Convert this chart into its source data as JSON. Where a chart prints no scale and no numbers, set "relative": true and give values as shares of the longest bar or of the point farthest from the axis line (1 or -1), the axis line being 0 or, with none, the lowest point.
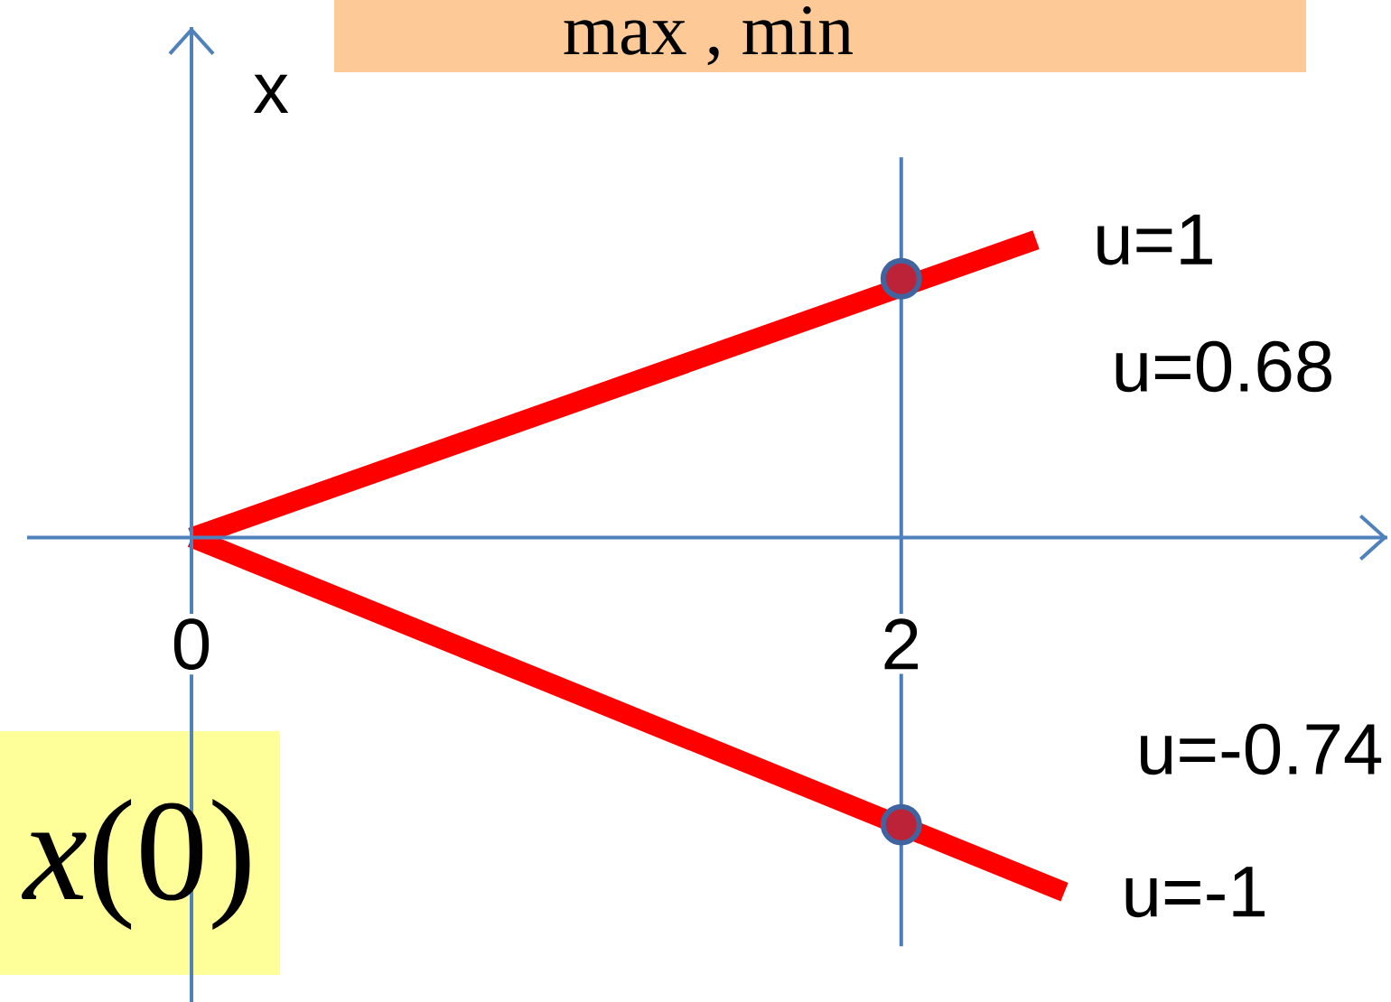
{
  "chart_data": {
    "type": "line",
    "relative": true,
    "ylabel": "x",
    "xlim": [
      0,
      3.37
    ],
    "xticks": [
      0,
      2
    ],
    "series": [
      {
        "name": "u=1",
        "color": "#ff0000",
        "x": [
          0,
          2.38
        ],
        "values": [
          0,
          0.84
        ]
      },
      {
        "name": "u=-1",
        "color": "#ff0000",
        "x": [
          0,
          2.46
        ],
        "values": [
          0,
          -1
        ]
      },
      {
        "type": "scatter",
        "marker": "circle",
        "color": "#3f64a0",
        "x": [
          2,
          2
        ],
        "values": [
          0.73,
          -0.81
        ]
      }
    ],
    "ref_lines": [
      {
        "axis": "x",
        "value": 2,
        "color": "#4a7ebb"
      }
    ],
    "annotations": [
      "u=0.68",
      "u=-0.74",
      "*x*(0)",
      "max , min"
    ]
  }
}
